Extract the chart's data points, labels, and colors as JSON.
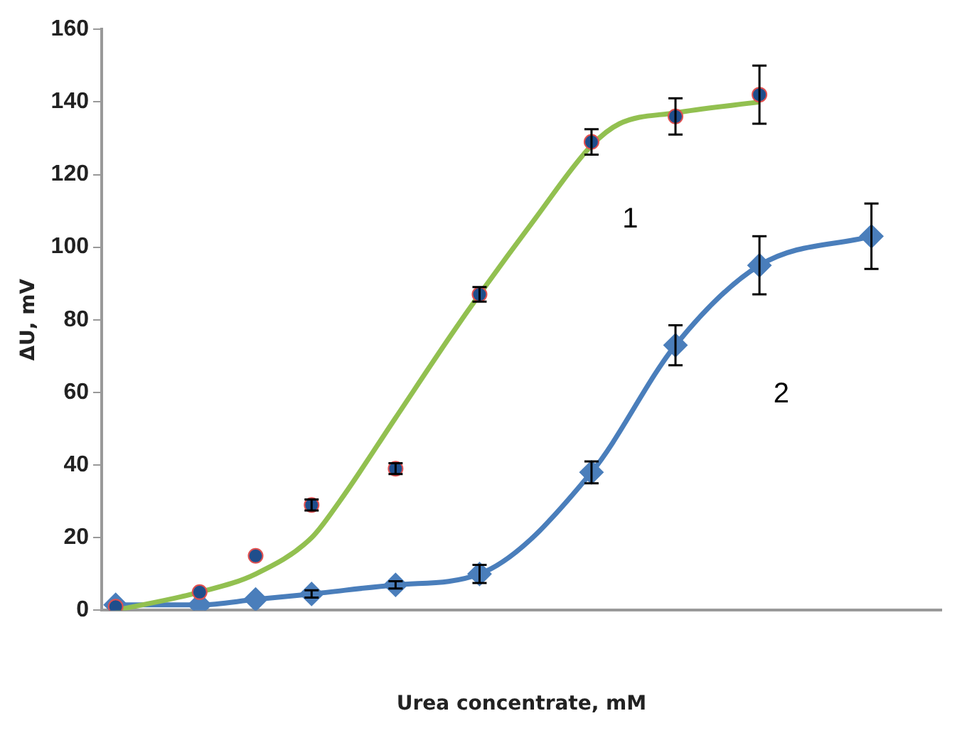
{
  "chart_data": {
    "type": "scatter",
    "xlabel": "Urea concentrate, mM",
    "ylabel": "ΔU, mV",
    "categories": [
      null,
      null,
      null,
      null,
      null,
      null,
      null,
      null,
      null,
      null,
      null,
      null,
      null,
      null,
      null,
      null,
      null,
      null,
      null,
      null,
      null,
      null,
      null,
      null,
      null,
      null,
      null,
      null,
      null,
      null
    ],
    "ylim": [
      0,
      160
    ],
    "yticks": [
      0,
      20,
      40,
      60,
      80,
      100,
      120,
      140,
      160
    ],
    "tick_labels": "y",
    "grid": false,
    "legend": false,
    "series": [
      {
        "type": "line",
        "color": "#92c050",
        "marker": "none",
        "values": [
          0,
          null,
          null,
          5,
          null,
          10,
          null,
          20,
          30,
          null,
          53,
          null,
          76,
          87,
          null,
          108,
          null,
          128,
          134,
          null,
          137,
          null,
          null,
          140,
          null,
          null,
          null,
          null,
          null,
          null
        ]
      },
      {
        "type": "scatter",
        "color": "#1f4e8c",
        "marker": "circle",
        "values": [
          1,
          null,
          null,
          5,
          null,
          15,
          null,
          29,
          null,
          null,
          39,
          null,
          null,
          87,
          null,
          null,
          null,
          129,
          null,
          null,
          136,
          null,
          null,
          142,
          null,
          null,
          null,
          null,
          null,
          null
        ],
        "errors": [
          null,
          null,
          null,
          null,
          null,
          null,
          null,
          1.5,
          null,
          null,
          1.5,
          null,
          null,
          2,
          null,
          null,
          null,
          3.5,
          null,
          null,
          5,
          null,
          null,
          8,
          null,
          null,
          null,
          null,
          null,
          null
        ]
      },
      {
        "type": "line",
        "color": "#4a7ebb",
        "marker": "diamond",
        "values": [
          1.5,
          null,
          null,
          1.5,
          null,
          3,
          null,
          4.5,
          null,
          null,
          7,
          null,
          null,
          10,
          null,
          null,
          null,
          38,
          null,
          null,
          73,
          null,
          null,
          95,
          null,
          null,
          null,
          103,
          null,
          null
        ],
        "errors": [
          null,
          null,
          null,
          null,
          null,
          null,
          null,
          1,
          null,
          null,
          1,
          null,
          null,
          2.5,
          null,
          null,
          null,
          3,
          null,
          null,
          5.5,
          null,
          null,
          8,
          null,
          null,
          null,
          9,
          null,
          null
        ]
      }
    ],
    "annotations": [
      "1",
      "2"
    ]
  }
}
